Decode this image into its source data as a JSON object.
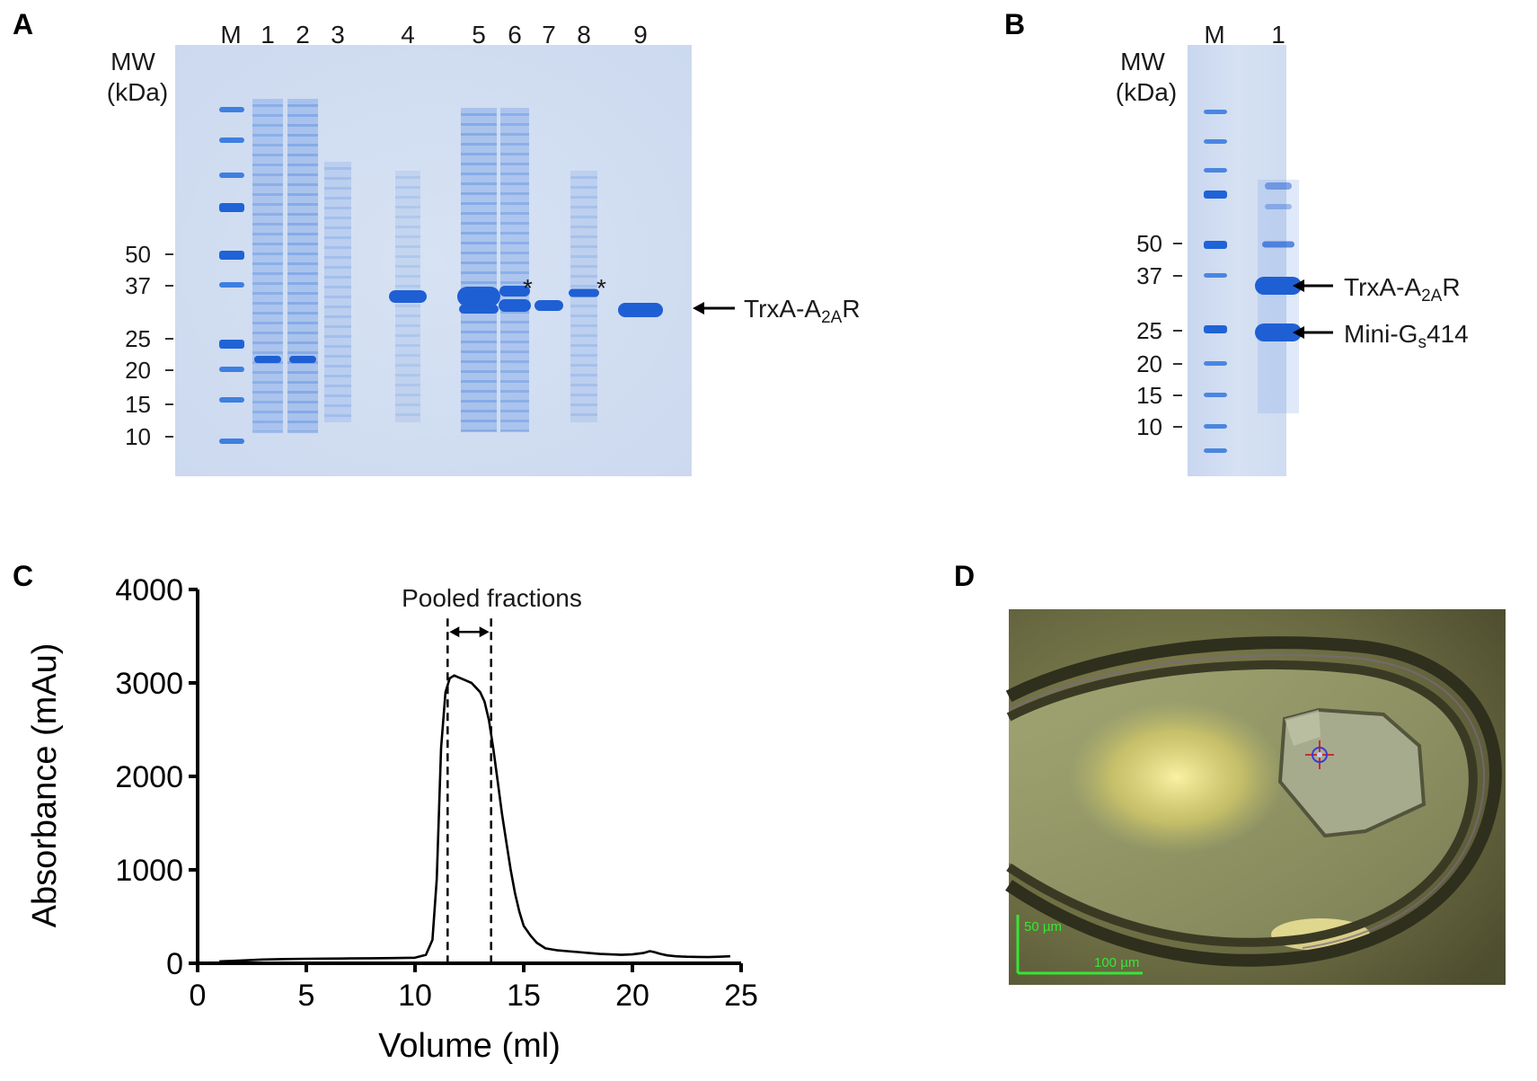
{
  "figure": {
    "panels": {
      "A": {
        "letter": "A",
        "mw_label_line1": "MW",
        "mw_label_line2": "(kDa)",
        "lane_labels": [
          "M",
          "1",
          "2",
          "3",
          "4",
          "5",
          "6",
          "7",
          "8",
          "9"
        ],
        "mw_markers": [
          "50",
          "37",
          "25",
          "20",
          "15",
          "10"
        ],
        "band_label_main": "TrxA-A",
        "band_label_sub": "2A",
        "band_label_tail": "R",
        "asterisk": "*"
      },
      "B": {
        "letter": "B",
        "mw_label_line1": "MW",
        "mw_label_line2": "(kDa)",
        "lane_labels": [
          "M",
          "1"
        ],
        "mw_markers": [
          "50",
          "37",
          "25",
          "20",
          "15",
          "10"
        ],
        "band1_main": "TrxA-A",
        "band1_sub": "2A",
        "band1_tail": "R",
        "band2_main": "Mini-G",
        "band2_sub": "s",
        "band2_tail": "414"
      },
      "C": {
        "letter": "C"
      },
      "D": {
        "letter": "D",
        "scale_vertical": "50 µm",
        "scale_horizontal": "100 µm",
        "scale_color": "#36e636"
      }
    }
  },
  "chart_data": {
    "type": "line",
    "xlabel": "Volume (ml)",
    "ylabel": "Absorbance (mAu)",
    "xlim": [
      0,
      25
    ],
    "ylim": [
      0,
      4000
    ],
    "xticks": [
      0,
      5,
      10,
      15,
      20,
      25
    ],
    "yticks": [
      0,
      1000,
      2000,
      3000,
      4000
    ],
    "annotation": "Pooled fractions",
    "pooled_range": [
      11.5,
      13.5
    ],
    "series": [
      {
        "x": [
          1.0,
          2.0,
          3.0,
          4.0,
          5.0,
          6.0,
          7.0,
          8.0,
          9.0,
          10.0,
          10.5,
          10.8,
          11.0,
          11.2,
          11.4,
          11.6,
          11.8,
          12.0,
          12.2,
          12.4,
          12.6,
          12.8,
          13.0,
          13.2,
          13.4,
          13.6,
          13.8,
          14.0,
          14.2,
          14.4,
          14.6,
          14.8,
          15.0,
          15.3,
          15.6,
          16.0,
          16.5,
          17.0,
          17.5,
          18.0,
          18.5,
          19.0,
          19.5,
          20.0,
          20.5,
          20.8,
          21.0,
          21.3,
          21.6,
          22.0,
          22.5,
          23.0,
          23.5,
          24.0,
          24.5
        ],
        "y": [
          20,
          30,
          40,
          45,
          48,
          50,
          52,
          54,
          56,
          60,
          90,
          250,
          900,
          2300,
          2900,
          3050,
          3080,
          3060,
          3040,
          3020,
          3000,
          2950,
          2900,
          2800,
          2600,
          2300,
          1950,
          1600,
          1300,
          1000,
          750,
          550,
          400,
          300,
          220,
          160,
          140,
          130,
          120,
          110,
          100,
          95,
          90,
          95,
          110,
          130,
          120,
          100,
          85,
          75,
          70,
          68,
          66,
          70,
          75
        ]
      }
    ]
  }
}
